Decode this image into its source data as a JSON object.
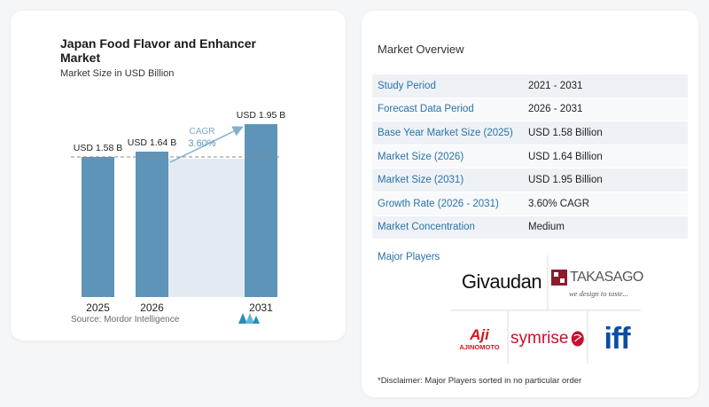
{
  "chart_panel": {
    "title": "Japan Food Flavor and Enhancer Market",
    "subtitle": "Market Size in USD Billion",
    "cagr_label": "CAGR",
    "cagr_value": "3.60%",
    "source": "Source:  Mordor Intelligence"
  },
  "chart_data": {
    "type": "bar",
    "title": "Japan Food Flavor and Enhancer Market",
    "subtitle": "Market Size in USD Billion",
    "categories": [
      "2025",
      "2026",
      "2031"
    ],
    "values": [
      1.58,
      1.64,
      1.95
    ],
    "data_labels": [
      "USD 1.58 B",
      "USD 1.64 B",
      "USD 1.95 B"
    ],
    "xlabel": "",
    "ylabel": "",
    "ylim": [
      0,
      2.0
    ],
    "grid": false,
    "reference_line": 1.58,
    "annotation": {
      "label": "CAGR",
      "value": "3.60%"
    },
    "colors": {
      "bar": "#5f94ba",
      "highlight": "#e3ebf2",
      "arrow": "#7fb1c9",
      "reference_line": "#888888"
    }
  },
  "overview": {
    "title": "Market Overview",
    "rows": [
      {
        "label": "Study Period",
        "value": "2021 - 2031"
      },
      {
        "label": "Forecast Data Period",
        "value": "2026 - 2031"
      },
      {
        "label": "Base Year Market Size (2025)",
        "value": "USD 1.58 Billion"
      },
      {
        "label": "Market Size (2026)",
        "value": "USD 1.64 Billion"
      },
      {
        "label": "Market Size (2031)",
        "value": "USD 1.95 Billion"
      },
      {
        "label": "Growth Rate (2026 - 2031)",
        "value": "3.60% CAGR"
      },
      {
        "label": "Market Concentration",
        "value": "Medium"
      }
    ],
    "players_label": "Major Players",
    "players": {
      "givaudan": "Givaudan",
      "takasago": "TAKASAGO",
      "takasago_tagline": "we design to taste...",
      "ajinomoto": "AJINOMOTO",
      "ajinomoto_mark": "Aji",
      "symrise": "symrise",
      "iff": "iff"
    },
    "disclaimer": "*Disclaimer: Major Players sorted in no particular order"
  }
}
